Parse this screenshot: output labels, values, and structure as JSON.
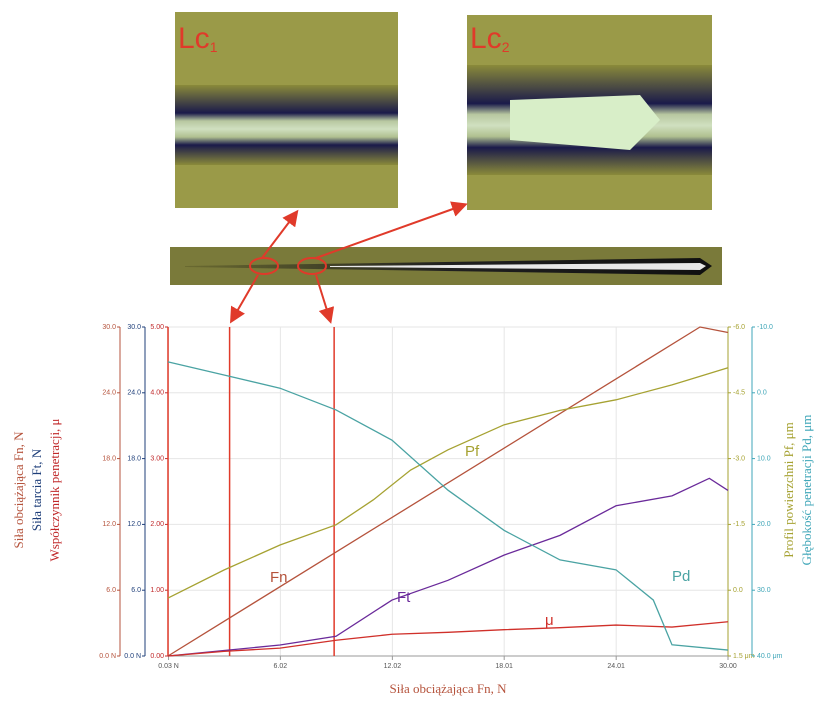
{
  "chart_data": {
    "type": "line",
    "micrograph_labels": [
      {
        "text": "Lc",
        "sub": "1"
      },
      {
        "text": "Lc",
        "sub": "2"
      }
    ],
    "xlabel": "Siła obciążająca Fn, N",
    "xlim": [
      0,
      30
    ],
    "xticks": [
      {
        "value": 0.03,
        "label": "0.03 N"
      },
      {
        "value": 6.02,
        "label": "6.02"
      },
      {
        "value": 12.02,
        "label": "12.02"
      },
      {
        "value": 18.01,
        "label": "18.01"
      },
      {
        "value": 24.01,
        "label": "24.01"
      },
      {
        "value": 30,
        "label": "30.00"
      }
    ],
    "grid": true,
    "critical_loads": [
      3.3,
      8.9
    ],
    "y_axes": [
      {
        "title": "Siła obciążająca Fn, N",
        "color": "#b5533c",
        "side": "left",
        "lim": [
          0,
          30
        ],
        "ticks": [
          {
            "value": 0,
            "label": "0.0 N"
          },
          {
            "value": 6,
            "label": "6.0"
          },
          {
            "value": 12,
            "label": "12.0"
          },
          {
            "value": 18,
            "label": "18.0"
          },
          {
            "value": 24,
            "label": "24.0"
          },
          {
            "value": 30,
            "label": "30.0"
          }
        ]
      },
      {
        "title": "Siła tarcia Ft, N",
        "color": "#1f3f7a",
        "side": "left",
        "lim": [
          0,
          30
        ],
        "ticks": [
          {
            "value": 0,
            "label": "0.0 N"
          },
          {
            "value": 6,
            "label": "6.0"
          },
          {
            "value": 12,
            "label": "12.0"
          },
          {
            "value": 18,
            "label": "18.0"
          },
          {
            "value": 24,
            "label": "24.0"
          },
          {
            "value": 30,
            "label": "30.0"
          }
        ]
      },
      {
        "title": "Współczynnik penetracji, μ",
        "color": "#c0282a",
        "side": "left",
        "lim": [
          0,
          5
        ],
        "ticks": [
          {
            "value": 0,
            "label": "0.00"
          },
          {
            "value": 1,
            "label": "1.00"
          },
          {
            "value": 2,
            "label": "2.00"
          },
          {
            "value": 3,
            "label": "3.00"
          },
          {
            "value": 4,
            "label": "4.00"
          },
          {
            "value": 5,
            "label": "5.00"
          }
        ]
      },
      {
        "title": "Profil powierzchni Pf, μm",
        "color": "#a6a232",
        "side": "right",
        "lim": [
          1.5,
          -6
        ],
        "ticks": [
          {
            "value": 1.5,
            "label": "1.5 μm"
          },
          {
            "value": 0,
            "label": "0.0"
          },
          {
            "value": -1.5,
            "label": "-1.5"
          },
          {
            "value": -3,
            "label": "-3.0"
          },
          {
            "value": -4.5,
            "label": "-4.5"
          },
          {
            "value": -6,
            "label": "-6.0"
          }
        ]
      },
      {
        "title": "Głębokość penetracji Pd, μm",
        "color": "#3fa6b8",
        "side": "right",
        "lim": [
          40,
          -10
        ],
        "ticks": [
          {
            "value": 40,
            "label": "40.0 μm"
          },
          {
            "value": 30,
            "label": "30.0"
          },
          {
            "value": 20,
            "label": "20.0"
          },
          {
            "value": 10,
            "label": "10.0"
          },
          {
            "value": 0,
            "label": "0.0"
          },
          {
            "value": -10,
            "label": "-10.0"
          }
        ]
      }
    ],
    "series": [
      {
        "name": "Fn",
        "color": "#b5533c",
        "axis": 0,
        "x": [
          0,
          28.5,
          30
        ],
        "values": [
          0,
          30,
          29.5
        ]
      },
      {
        "name": "Ft",
        "color": "#6a2a9a",
        "axis": 1,
        "x": [
          0,
          3,
          6,
          9,
          12,
          15,
          18,
          21,
          24,
          27,
          29,
          30
        ],
        "values": [
          0,
          0.5,
          1,
          1.8,
          5.1,
          6.9,
          9.2,
          11,
          13.7,
          14.6,
          16.2,
          15.1
        ]
      },
      {
        "name": "μ",
        "color": "#d0302a",
        "axis": 2,
        "x": [
          0,
          3,
          6,
          9,
          12,
          15,
          18,
          21,
          24,
          27,
          30
        ],
        "values": [
          0,
          0.07,
          0.12,
          0.24,
          0.33,
          0.36,
          0.4,
          0.43,
          0.47,
          0.44,
          0.52
        ]
      },
      {
        "name": "Pf",
        "color": "#a6a232",
        "axis": 3,
        "x": [
          0,
          3,
          6,
          9,
          11,
          13,
          15,
          18,
          21,
          24,
          27,
          30
        ],
        "values": [
          0.18,
          -0.46,
          -1.03,
          -1.49,
          -2.06,
          -2.74,
          -3.2,
          -3.77,
          -4.1,
          -4.34,
          -4.68,
          -5.07
        ]
      },
      {
        "name": "Pd",
        "color": "#4aa3a3",
        "axis": 4,
        "x": [
          0,
          3,
          6,
          9,
          12,
          15,
          18,
          21,
          24,
          26,
          27,
          30
        ],
        "values": [
          -4.7,
          -2.7,
          -0.7,
          2.6,
          7.2,
          14.8,
          20.9,
          25.4,
          26.9,
          31.5,
          38.3,
          39.1
        ]
      }
    ]
  }
}
